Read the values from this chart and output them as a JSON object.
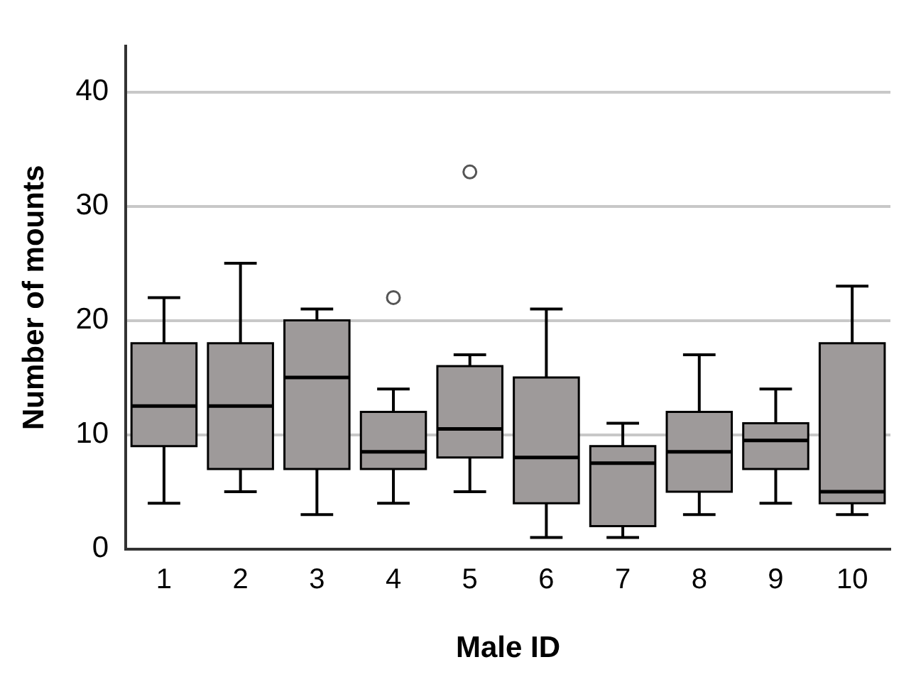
{
  "chart_data": {
    "type": "box",
    "xlabel": "Male ID",
    "ylabel": "Number of mounts",
    "categories": [
      "1",
      "2",
      "3",
      "4",
      "5",
      "6",
      "7",
      "8",
      "9",
      "10"
    ],
    "color": "#9e9a9a",
    "ylim": [
      0,
      44
    ],
    "yticks": [
      0,
      10,
      20,
      30,
      40
    ],
    "grid": "y",
    "legend": false,
    "boxes": [
      {
        "low": 4,
        "q1": 9,
        "median": 12.5,
        "q3": 18,
        "high": 22
      },
      {
        "low": 5,
        "q1": 7,
        "median": 12.5,
        "q3": 18,
        "high": 25
      },
      {
        "low": 3,
        "q1": 7,
        "median": 15,
        "q3": 20,
        "high": 21
      },
      {
        "low": 4,
        "q1": 7,
        "median": 8.5,
        "q3": 12,
        "high": 14,
        "outliers": [
          22
        ]
      },
      {
        "low": 5,
        "q1": 8,
        "median": 10.5,
        "q3": 16,
        "high": 17,
        "outliers": [
          33
        ]
      },
      {
        "low": 1,
        "q1": 4,
        "median": 8,
        "q3": 15,
        "high": 21
      },
      {
        "low": 1,
        "q1": 2,
        "median": 7.5,
        "q3": 9,
        "high": 11
      },
      {
        "low": 3,
        "q1": 5,
        "median": 8.5,
        "q3": 12,
        "high": 17
      },
      {
        "low": 4,
        "q1": 7,
        "median": 9.5,
        "q3": 11,
        "high": 14
      },
      {
        "low": 3,
        "q1": 4,
        "median": 5,
        "q3": 18,
        "high": 23
      }
    ]
  }
}
